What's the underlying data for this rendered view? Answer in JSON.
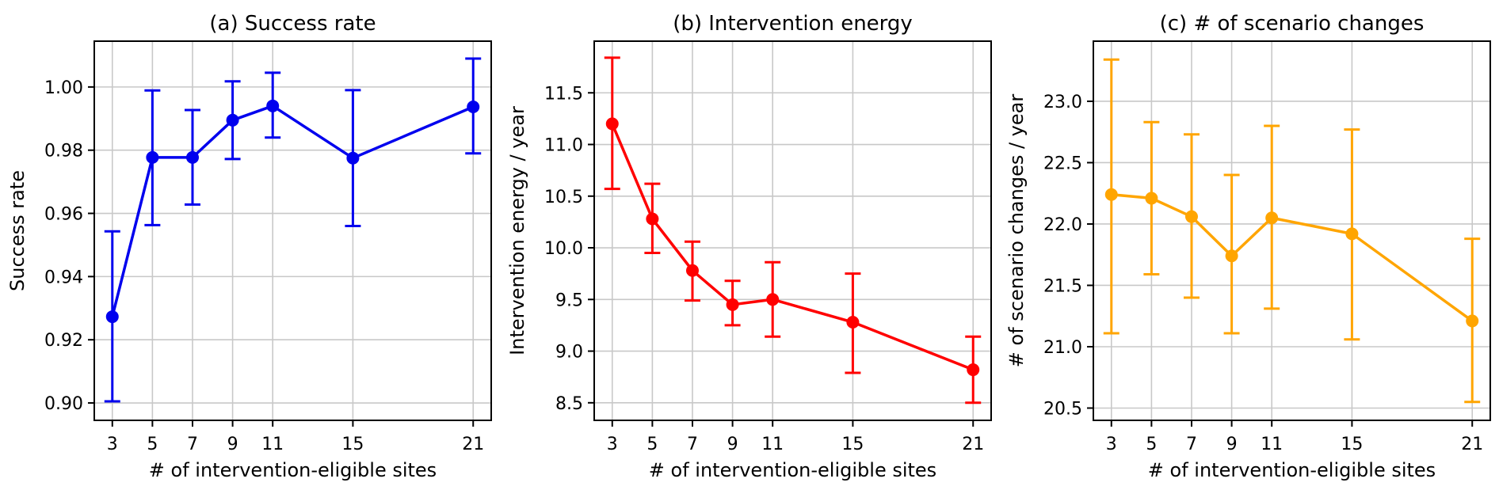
{
  "figure": {
    "background": "#ffffff",
    "grid_color": "#c8c8c8",
    "axis_color": "#000000",
    "text_color": "#000000"
  },
  "chart_data": [
    {
      "type": "line",
      "title": "(a) Success rate",
      "xlabel": "# of intervention-eligible sites",
      "ylabel": "Success rate",
      "color": "#0000ee",
      "marker": "circle",
      "error_bars": true,
      "grid": true,
      "legend_position": "none",
      "x": [
        3,
        5,
        7,
        9,
        11,
        15,
        21
      ],
      "y": [
        0.9273,
        0.9777,
        0.9777,
        0.9895,
        0.994,
        0.9775,
        0.9937
      ],
      "err_low": [
        0.9005,
        0.9563,
        0.9628,
        0.9772,
        0.984,
        0.956,
        0.979
      ],
      "err_high": [
        0.9543,
        0.9989,
        0.9927,
        1.0018,
        1.0045,
        0.999,
        1.009
      ],
      "xticks": [
        3,
        5,
        7,
        9,
        11,
        15,
        21
      ],
      "yticks": [
        0.9,
        0.92,
        0.94,
        0.96,
        0.98,
        1.0
      ],
      "ytick_labels": [
        "0.90",
        "0.92",
        "0.94",
        "0.96",
        "0.98",
        "1.00"
      ],
      "xlim": [
        2.1,
        21.9
      ],
      "ylim": [
        0.8945,
        1.0145
      ]
    },
    {
      "type": "line",
      "title": "(b) Intervention energy",
      "xlabel": "# of intervention-eligible sites",
      "ylabel": "Intervention energy / year",
      "color": "#ff0000",
      "marker": "circle",
      "error_bars": true,
      "grid": true,
      "legend_position": "none",
      "x": [
        3,
        5,
        7,
        9,
        11,
        15,
        21
      ],
      "y": [
        11.2,
        10.28,
        9.78,
        9.45,
        9.5,
        9.28,
        8.82
      ],
      "err_low": [
        10.57,
        9.95,
        9.49,
        9.25,
        9.14,
        8.79,
        8.5
      ],
      "err_high": [
        11.84,
        10.62,
        10.06,
        9.68,
        9.86,
        9.75,
        9.14
      ],
      "xticks": [
        3,
        5,
        7,
        9,
        11,
        15,
        21
      ],
      "yticks": [
        8.5,
        9.0,
        9.5,
        10.0,
        10.5,
        11.0,
        11.5
      ],
      "ytick_labels": [
        "8.5",
        "9.0",
        "9.5",
        "10.0",
        "10.5",
        "11.0",
        "11.5"
      ],
      "xlim": [
        2.1,
        21.9
      ],
      "ylim": [
        8.33,
        12.0
      ]
    },
    {
      "type": "line",
      "title": "(c) # of scenario changes",
      "xlabel": "# of intervention-eligible sites",
      "ylabel": "# of scenario changes / year",
      "color": "#ffa500",
      "marker": "circle",
      "error_bars": true,
      "grid": true,
      "legend_position": "none",
      "x": [
        3,
        5,
        7,
        9,
        11,
        15,
        21
      ],
      "y": [
        22.24,
        22.21,
        22.06,
        21.74,
        22.05,
        21.92,
        21.21
      ],
      "err_low": [
        21.11,
        21.59,
        21.4,
        21.11,
        21.31,
        21.06,
        20.55
      ],
      "err_high": [
        23.34,
        22.83,
        22.73,
        22.4,
        22.8,
        22.77,
        21.88
      ],
      "xticks": [
        3,
        5,
        7,
        9,
        11,
        15,
        21
      ],
      "yticks": [
        20.5,
        21.0,
        21.5,
        22.0,
        22.5,
        23.0
      ],
      "ytick_labels": [
        "20.5",
        "21.0",
        "21.5",
        "22.0",
        "22.5",
        "23.0"
      ],
      "xlim": [
        2.1,
        21.9
      ],
      "ylim": [
        20.4,
        23.49
      ]
    }
  ]
}
